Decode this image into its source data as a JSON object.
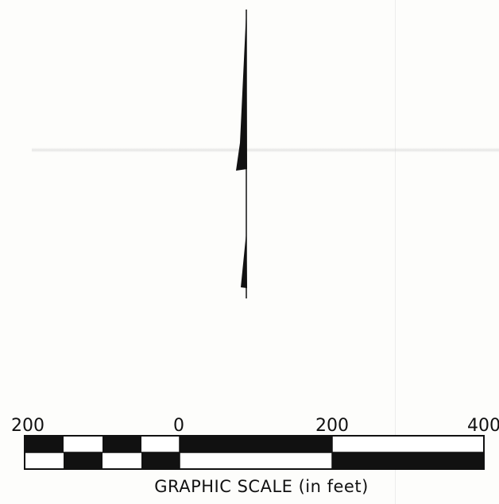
{
  "north_arrow": {
    "icon": "north-arrow-icon",
    "color": "#111111"
  },
  "scale": {
    "ticks": [
      "200",
      "0",
      "200",
      "400"
    ],
    "caption": "GRAPHIC SCALE (in feet)",
    "bar_color": "#111111",
    "fill_color": "#ffffff"
  }
}
